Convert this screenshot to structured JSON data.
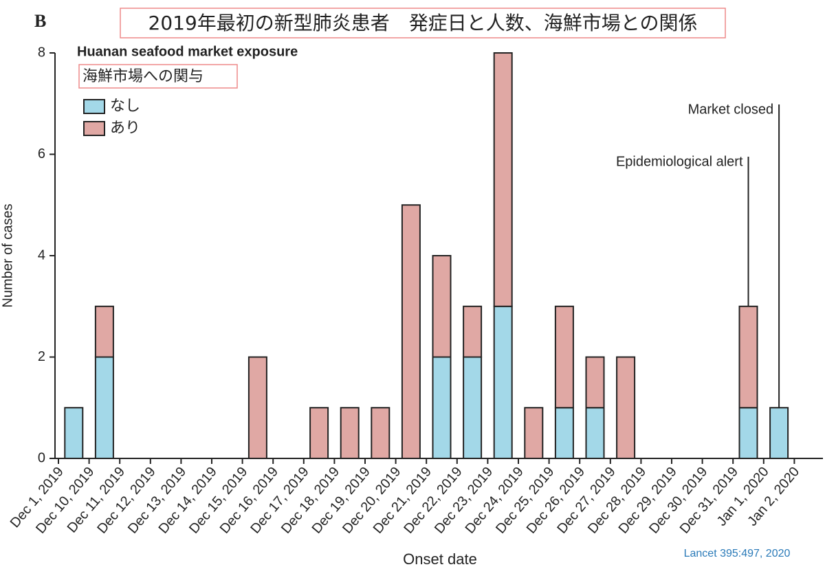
{
  "panel_label": "B",
  "title": "2019年最初の新型肺炎患者　発症日と人数、海鮮市場との関係",
  "source": "Lancet 395:497, 2020",
  "chart_data": {
    "type": "stacked_bar",
    "legend_title": "Huanan seafood market exposure",
    "legend_subtitle": "海鮮市場への関与",
    "x_label": "Onset date",
    "y_label": "Number of cases",
    "categories": [
      "Dec 1, 2019",
      "Dec 10, 2019",
      "Dec 11, 2019",
      "Dec 12, 2019",
      "Dec 13, 2019",
      "Dec 14, 2019",
      "Dec 15, 2019",
      "Dec 16, 2019",
      "Dec 17, 2019",
      "Dec 18, 2019",
      "Dec 19, 2019",
      "Dec 20, 2019",
      "Dec 21, 2019",
      "Dec 22, 2019",
      "Dec 23, 2019",
      "Dec 24, 2019",
      "Dec 25, 2019",
      "Dec 26, 2019",
      "Dec 27, 2019",
      "Dec 28, 2019",
      "Dec 29, 2019",
      "Dec 30, 2019",
      "Dec 31, 2019",
      "Jan 1, 2020",
      "Jan 2, 2020"
    ],
    "series": [
      {
        "name": "なし",
        "color": "#a3d8e8",
        "values": [
          1,
          2,
          0,
          0,
          0,
          0,
          0,
          0,
          0,
          0,
          0,
          0,
          2,
          2,
          3,
          0,
          1,
          1,
          0,
          0,
          0,
          0,
          1,
          1,
          0
        ]
      },
      {
        "name": "あり",
        "color": "#e0a8a4",
        "values": [
          0,
          1,
          0,
          0,
          0,
          0,
          2,
          0,
          1,
          1,
          1,
          5,
          2,
          1,
          5,
          1,
          2,
          1,
          2,
          0,
          0,
          0,
          2,
          0,
          0
        ]
      }
    ],
    "ylim": [
      0,
      8
    ],
    "yticks": [
      0,
      2,
      4,
      6,
      8
    ],
    "annotations": [
      {
        "text": "Epidemiological alert",
        "category": "Dec 31, 2019"
      },
      {
        "text": "Market closed",
        "category": "Jan 1, 2020"
      }
    ]
  }
}
